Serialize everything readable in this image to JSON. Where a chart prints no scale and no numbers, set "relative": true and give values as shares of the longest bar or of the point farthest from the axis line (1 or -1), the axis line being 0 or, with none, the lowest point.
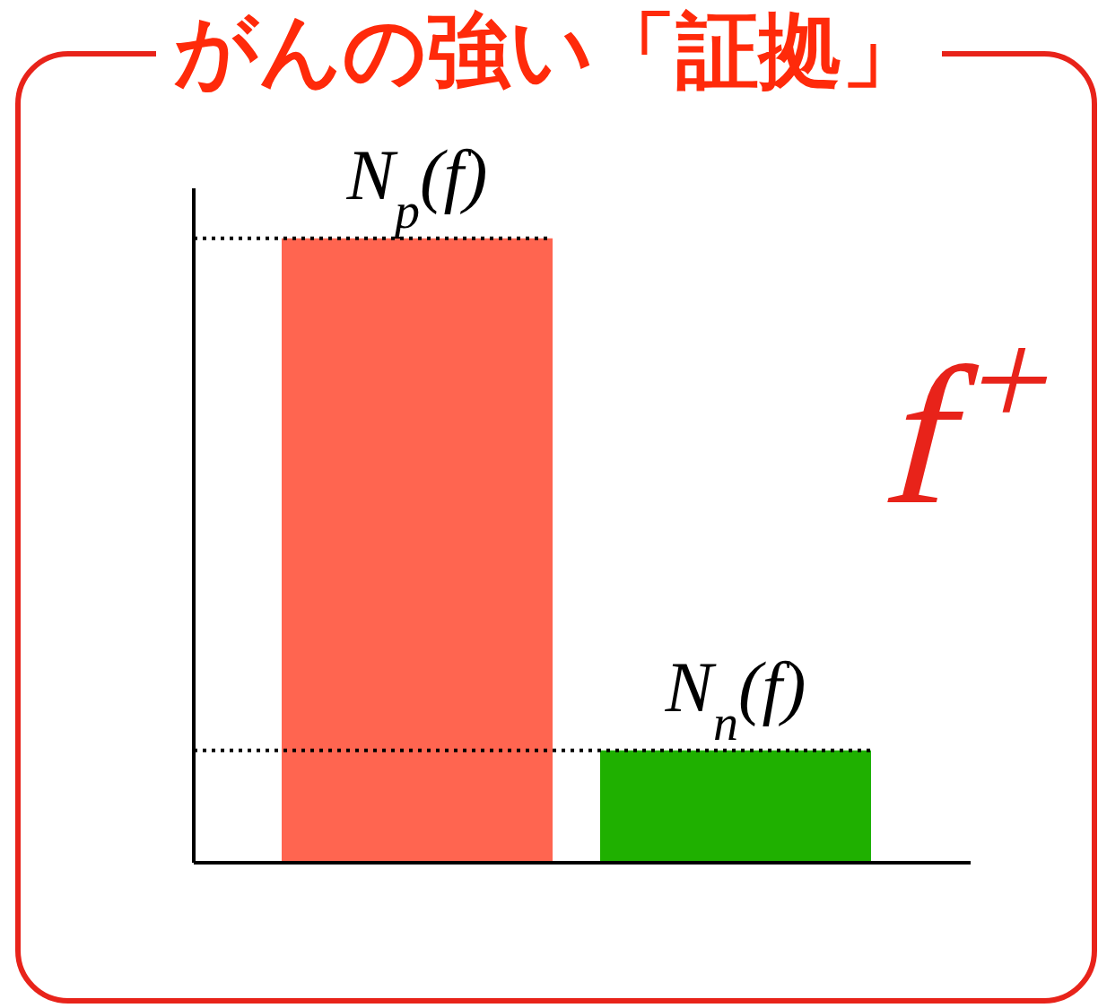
{
  "chart_data": {
    "type": "bar",
    "title": "がんの強い「証拠」",
    "categories": [
      null,
      null
    ],
    "values": [
      1,
      0.18
    ],
    "colors": [
      "#ff6550",
      "#1fb000"
    ],
    "relative": true,
    "ref_lines": [
      {
        "axis": "y",
        "value": 1,
        "line_style": "dotted",
        "color": "#000000"
      },
      {
        "axis": "y",
        "value": 0.18,
        "line_style": "dotted",
        "color": "#000000"
      }
    ],
    "annotations": [
      "N$_{p}$(f)",
      "N$_{n}$(f)",
      "f$^{+}$"
    ]
  }
}
